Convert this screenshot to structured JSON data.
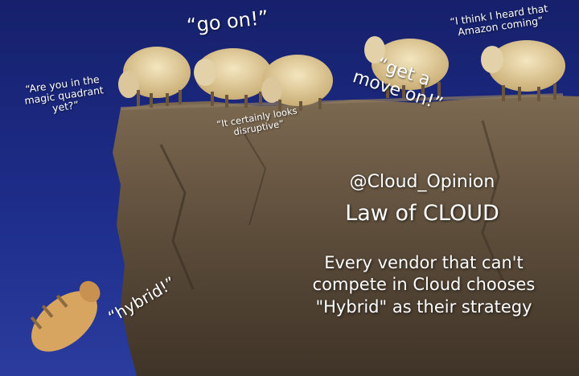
{
  "quotes": {
    "magic_quadrant": [
      "“Are you in the",
      "magic quadrant",
      "yet?”"
    ],
    "go_on": "“go on!”",
    "amazon": [
      "“I think I heard that",
      "Amazon coming”"
    ],
    "get_move_on": [
      "“get a",
      "move on!”"
    ],
    "disruptive": [
      "“It certainly looks",
      "disruptive”"
    ],
    "hybrid": "“hybrid!”"
  },
  "caption": {
    "handle": "@Cloud_Opinion",
    "title": "Law of CLOUD",
    "lines": [
      "Every vendor that can't",
      "compete in Cloud chooses",
      "\"Hybrid\" as their strategy"
    ]
  },
  "colors": {
    "sky": "#1e2d8a",
    "rock": "#6b5a45",
    "wool": "#e9d5a4",
    "text": "#ffffff"
  }
}
